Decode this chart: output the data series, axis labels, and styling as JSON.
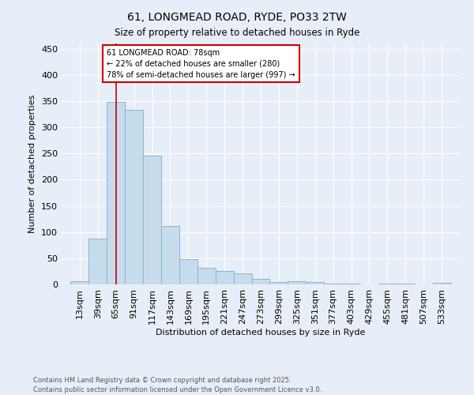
{
  "title": "61, LONGMEAD ROAD, RYDE, PO33 2TW",
  "subtitle": "Size of property relative to detached houses in Ryde",
  "xlabel": "Distribution of detached houses by size in Ryde",
  "ylabel": "Number of detached properties",
  "categories": [
    "13sqm",
    "39sqm",
    "65sqm",
    "91sqm",
    "117sqm",
    "143sqm",
    "169sqm",
    "195sqm",
    "221sqm",
    "247sqm",
    "273sqm",
    "299sqm",
    "325sqm",
    "351sqm",
    "377sqm",
    "403sqm",
    "429sqm",
    "455sqm",
    "481sqm",
    "507sqm",
    "533sqm"
  ],
  "values": [
    6,
    88,
    349,
    334,
    246,
    111,
    49,
    32,
    25,
    21,
    10,
    5,
    6,
    4,
    2,
    1,
    0,
    1,
    1,
    0,
    3
  ],
  "bar_color": "#c6dcec",
  "bar_edge_color": "#8ab4cc",
  "red_line_color": "#cc0000",
  "annotation_line1": "61 LONGMEAD ROAD: 78sqm",
  "annotation_line2": "← 22% of detached houses are smaller (280)",
  "annotation_line3": "78% of semi-detached houses are larger (997) →",
  "annotation_box_color": "#ffffff",
  "annotation_box_edge": "#cc0000",
  "footer_line1": "Contains HM Land Registry data © Crown copyright and database right 2025.",
  "footer_line2": "Contains public sector information licensed under the Open Government Licence v3.0.",
  "background_color": "#e8eef8",
  "grid_color": "#ffffff",
  "ylim": [
    0,
    460
  ],
  "yticks": [
    0,
    50,
    100,
    150,
    200,
    250,
    300,
    350,
    400,
    450
  ],
  "property_sqm": 78,
  "bin_starts": [
    13,
    39,
    65,
    91,
    117,
    143,
    169,
    195,
    221,
    247,
    273,
    299,
    325,
    351,
    377,
    403,
    429,
    455,
    481,
    507,
    533
  ],
  "bin_width": 26
}
